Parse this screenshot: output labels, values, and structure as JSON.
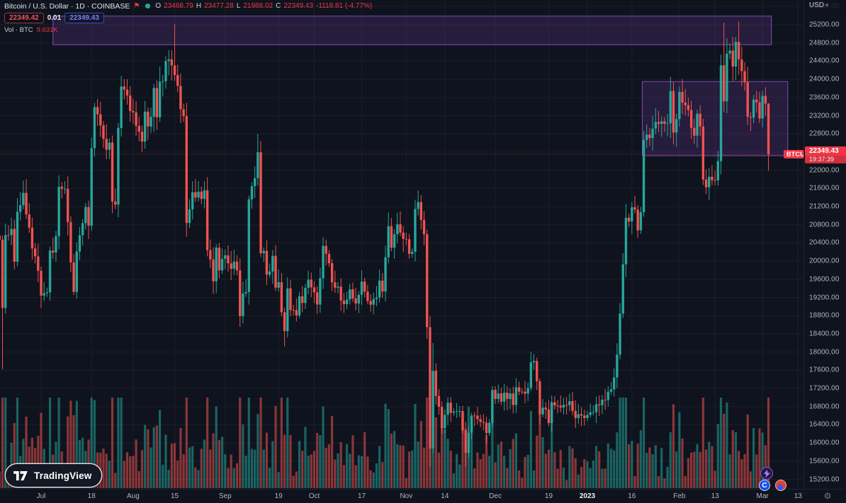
{
  "header": {
    "symbol_title": "Bitcoin / U.S. Dollar · 1D · COINBASE",
    "ohlc": {
      "o_label": "O",
      "o": "23468.79",
      "h_label": "H",
      "h": "23477.28",
      "l_label": "L",
      "l": "21988.02",
      "c_label": "C",
      "c": "22349.43",
      "change": "-1118.81 (-4.77%)"
    },
    "sell_price": "22349.42",
    "spread": "0.01",
    "buy_price": "22349.43",
    "volume_label": "Vol · BTC",
    "volume_value": "9.631K"
  },
  "price_axis": {
    "currency_label": "USD",
    "ticks": [
      "25600.00",
      "25200.00",
      "24800.00",
      "24400.00",
      "24000.00",
      "23600.00",
      "23200.00",
      "22800.00",
      "22400.00",
      "22000.00",
      "21600.00",
      "21200.00",
      "20800.00",
      "20400.00",
      "20000.00",
      "19600.00",
      "19200.00",
      "18800.00",
      "18400.00",
      "18000.00",
      "17600.00",
      "17200.00",
      "16800.00",
      "16400.00",
      "16000.00",
      "15600.00",
      "15200.00"
    ],
    "last_price": "22349.43",
    "countdown": "19:37:39"
  },
  "time_axis": {
    "ticks": [
      {
        "label": "Jul",
        "day": 0
      },
      {
        "label": "18",
        "day": 17
      },
      {
        "label": "Aug",
        "day": 31
      },
      {
        "label": "15",
        "day": 45
      },
      {
        "label": "Sep",
        "day": 62
      },
      {
        "label": "19",
        "day": 80
      },
      {
        "label": "Oct",
        "day": 92
      },
      {
        "label": "17",
        "day": 108
      },
      {
        "label": "Nov",
        "day": 123
      },
      {
        "label": "14",
        "day": 136
      },
      {
        "label": "Dec",
        "day": 153
      },
      {
        "label": "19",
        "day": 171
      },
      {
        "label": "2023",
        "day": 184,
        "emph": true
      },
      {
        "label": "16",
        "day": 199
      },
      {
        "label": "Feb",
        "day": 215
      },
      {
        "label": "13",
        "day": 227
      },
      {
        "label": "Mar",
        "day": 243
      },
      {
        "label": "13",
        "day": 255
      }
    ]
  },
  "price_line_label": "BTCUSD",
  "watermark": {
    "label": "TradingView"
  },
  "icons": [
    "flag-icon",
    "market-status-dot",
    "gear-icon",
    "bolt-circle-icon",
    "coinbase-circle-icon",
    "red-broker-circle-icon",
    "usd-caret-icon"
  ],
  "colors": {
    "background": "#0f131d",
    "grid": "#1a1f2b",
    "up": "#26a69a",
    "down": "#ef5350",
    "tag_red": "#f23645",
    "buy_blue": "#2962ff",
    "rect_fill": "rgba(123,63,173,0.22)",
    "rect_stroke": "rgba(148,88,205,0.85)",
    "price_line": "rgba(242,54,69,0.55)"
  },
  "chart_data": {
    "type": "candlestick",
    "symbol": "BTCUSD",
    "exchange": "COINBASE",
    "interval": "1D",
    "start_date": "2022-06-17",
    "end_date": "2023-03-03",
    "day_offset": -14,
    "ylim": [
      15000,
      25800
    ],
    "first_open": 20560,
    "closes": [
      20471,
      18970,
      20574,
      20573,
      20710,
      19987,
      21085,
      21231,
      21502,
      21027,
      20735,
      20280,
      20104,
      19785,
      19242,
      19297,
      19315,
      20231,
      20190,
      20548,
      21637,
      21591,
      21591,
      20860,
      19970,
      19323,
      20211,
      20569,
      20836,
      21190,
      20779,
      22485,
      23389,
      23231,
      22987,
      22690,
      22451,
      22609,
      21311,
      21245,
      22930,
      23843,
      23773,
      23644,
      23303,
      23271,
      22978,
      22846,
      22630,
      23289,
      22961,
      23175,
      23809,
      23164,
      23948,
      23957,
      24402,
      24440,
      24305,
      24095,
      23854,
      23342,
      23191,
      20838,
      21139,
      21516,
      21398,
      21528,
      21368,
      21559,
      20241,
      20037,
      19556,
      20297,
      19796,
      20050,
      20127,
      19952,
      19832,
      19988,
      19794,
      18790,
      19290,
      19320,
      21360,
      21648,
      21826,
      22395,
      20175,
      20226,
      19701,
      19772,
      20115,
      19416,
      19537,
      18875,
      18461,
      19401,
      18925,
      18921,
      18807,
      19227,
      19079,
      19412,
      19591,
      19423,
      19312,
      19044,
      19623,
      20336,
      20160,
      19955,
      19533,
      19416,
      19440,
      19132,
      19054,
      19156,
      19380,
      19178,
      19068,
      19260,
      19550,
      19328,
      19122,
      19041,
      19166,
      19203,
      19570,
      19330,
      20085,
      20770,
      20295,
      20590,
      20810,
      20627,
      20490,
      20480,
      20160,
      20205,
      21147,
      21299,
      20905,
      20590,
      18547,
      15880,
      17586,
      17034,
      16795,
      16327,
      16618,
      16884,
      16663,
      16692,
      16697,
      16700,
      16280,
      15782,
      16226,
      16603,
      16600,
      16522,
      16464,
      16444,
      16217,
      16443,
      17168,
      16968,
      17088,
      16908,
      17105,
      16966,
      17089,
      16836,
      17224,
      17128,
      17127,
      17085,
      17209,
      17775,
      17803,
      17355,
      16630,
      16776,
      16738,
      16438,
      16896,
      16824,
      16818,
      16778,
      16838,
      16832,
      16919,
      16706,
      16547,
      16633,
      16602,
      16547,
      16617,
      16672,
      16675,
      16850,
      16831,
      16950,
      16943,
      17127,
      17178,
      17440,
      17943,
      18846,
      19930,
      20954,
      20871,
      21185,
      21134,
      20677,
      21075,
      22667,
      22783,
      22707,
      22916,
      23060,
      23019,
      23075,
      23021,
      23031,
      23742,
      22827,
      23125,
      23723,
      23488,
      23430,
      23325,
      22932,
      22760,
      23243,
      22963,
      21796,
      21625,
      21856,
      21780,
      21774,
      22200,
      24307,
      23517,
      24565,
      24632,
      24280,
      24824,
      24436,
      24180,
      23935,
      23175,
      23157,
      23554,
      23492,
      23141,
      23636,
      23465,
      22349.43
    ],
    "wick_overrides": {
      "1": {
        "low": 17622
      },
      "59": {
        "high": 25211
      },
      "87": {
        "high": 22799
      },
      "96": {
        "low": 18125
      },
      "145": {
        "low": 15476
      },
      "146": {
        "high": 18199
      },
      "157": {
        "low": 15476
      },
      "211": {
        "high": 21258
      },
      "244": {
        "high": 25250
      },
      "249": {
        "high": 25270
      },
      "259": {
        "high": 23477.28,
        "low": 21988.02
      }
    },
    "last_candle": {
      "open": 23468.79,
      "high": 23477.28,
      "low": 21988.02,
      "close": 22349.43
    },
    "annotations": {
      "rects": [
        {
          "name": "supply-zone-top",
          "from_day": 4,
          "to_day": 246,
          "price_top": 25390,
          "price_bottom": 24760
        },
        {
          "name": "range-box",
          "from_day": 202.5,
          "to_day": 251.5,
          "price_top": 23950,
          "price_bottom": 22320
        }
      ]
    },
    "price_line": {
      "value": 22349.43,
      "label": "BTCUSD"
    }
  }
}
